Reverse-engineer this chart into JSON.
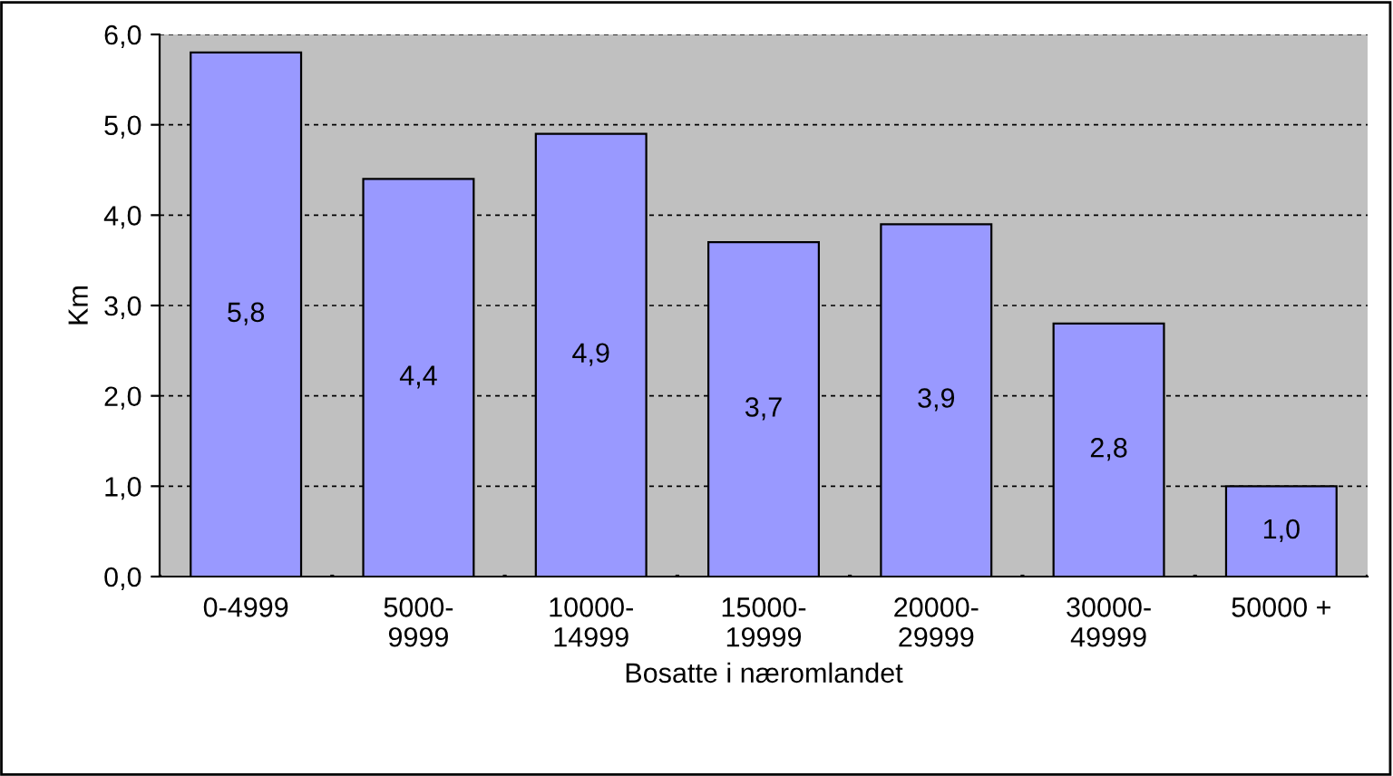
{
  "chart_data": {
    "type": "bar",
    "xlabel": "Bosatte i næromlandet",
    "ylabel": "Km",
    "categories": [
      "0-4999",
      "5000-\n9999",
      "10000-\n14999",
      "15000-\n19999",
      "20000-\n29999",
      "30000-\n49999",
      "50000 +"
    ],
    "values": [
      5.8,
      4.4,
      4.9,
      3.7,
      3.9,
      2.8,
      1.0
    ],
    "value_labels": [
      "5,8",
      "4,4",
      "4,9",
      "3,7",
      "3,9",
      "2,8",
      "1,0"
    ],
    "color": "#9999ff",
    "ylim": [
      0,
      6
    ],
    "yticks": [
      {
        "value": 0,
        "label": "0,0"
      },
      {
        "value": 1,
        "label": "1,0"
      },
      {
        "value": 2,
        "label": "2,0"
      },
      {
        "value": 3,
        "label": "3,0"
      },
      {
        "value": 4,
        "label": "4,0"
      },
      {
        "value": 5,
        "label": "5,0"
      },
      {
        "value": 6,
        "label": "6,0"
      }
    ],
    "grid": "y",
    "legend": false
  }
}
